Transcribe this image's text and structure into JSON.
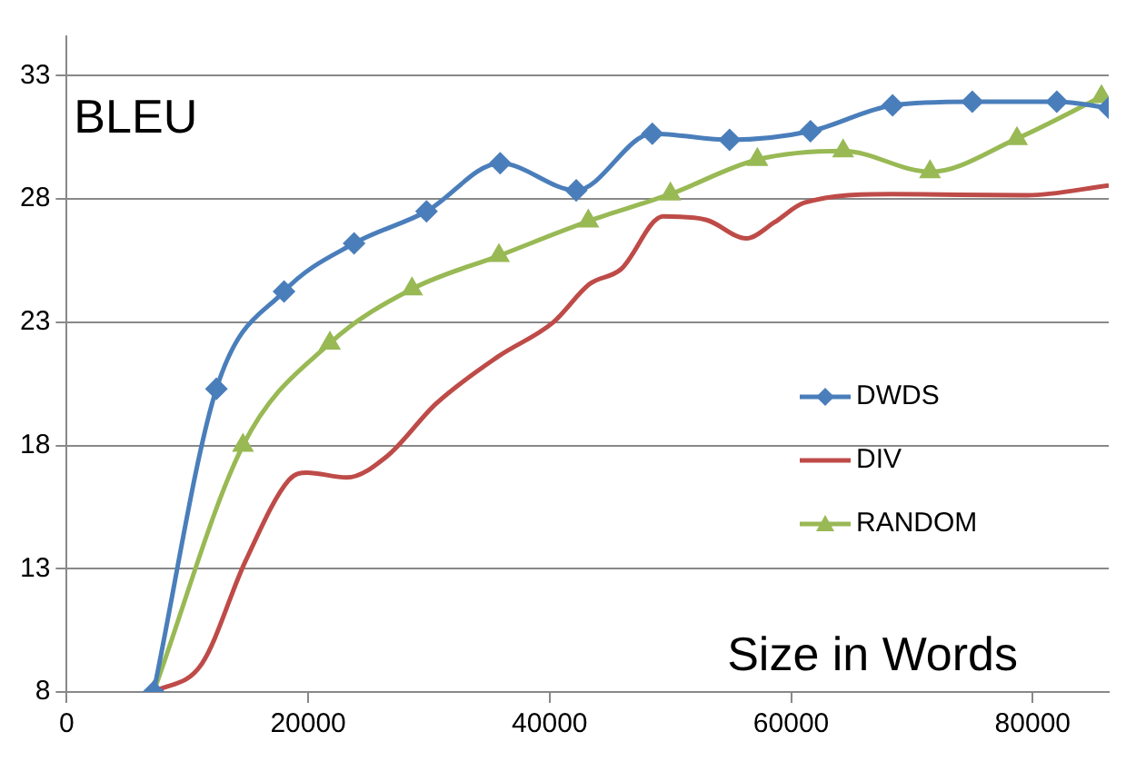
{
  "chart_data": {
    "type": "line",
    "ylabel": "BLEU",
    "xlabel": "Size in Words",
    "xlim": [
      0,
      86300
    ],
    "xticks": [
      0,
      20000,
      40000,
      60000,
      80000
    ],
    "ylim": [
      8,
      34.6
    ],
    "yticks": [
      8,
      13,
      18,
      23,
      28,
      33
    ],
    "grid": "y",
    "legend": "right",
    "line_style": "solid",
    "series": [
      {
        "name": "DWDS",
        "color": "#4a7ebb",
        "marker": "diamond",
        "x": [
          7200,
          12400,
          18000,
          23800,
          29800,
          35900,
          42200,
          48500,
          54900,
          61600,
          68400,
          75000,
          82000,
          86300
        ],
        "values": [
          8,
          20.3,
          24.25,
          26.2,
          27.5,
          29.45,
          28.35,
          30.65,
          30.4,
          30.75,
          31.8,
          31.95,
          31.95,
          31.7
        ]
      },
      {
        "name": "DIV",
        "color": "#be4b48",
        "marker": "none",
        "x": [
          7200,
          11200,
          14800,
          18400,
          19900,
          23200,
          26500,
          30600,
          35700,
          40300,
          43300,
          45900,
          49400,
          53000,
          56300,
          58600,
          61100,
          68300,
          79500,
          86300
        ],
        "values": [
          8,
          9.15,
          13.3,
          16.6,
          16.9,
          16.7,
          17.55,
          19.7,
          21.6,
          23.0,
          24.55,
          25.15,
          27.3,
          27.15,
          26.4,
          27.05,
          27.85,
          28.2,
          28.15,
          28.55
        ]
      },
      {
        "name": "RANDOM",
        "color": "#98b954",
        "marker": "triangle",
        "x": [
          7200,
          14600,
          21800,
          28600,
          35800,
          43200,
          50000,
          57200,
          64300,
          71500,
          78700,
          85700
        ],
        "values": [
          8,
          18.0,
          22.15,
          24.35,
          25.7,
          27.1,
          28.2,
          29.6,
          29.95,
          29.1,
          30.45,
          32.15
        ]
      }
    ]
  }
}
